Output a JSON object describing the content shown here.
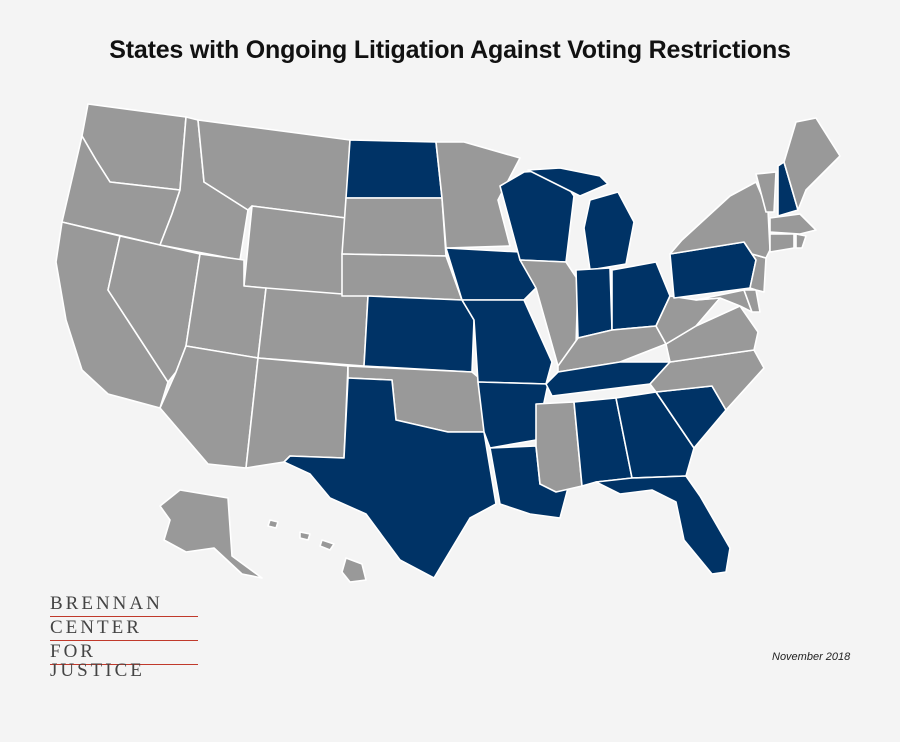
{
  "title": "States with Ongoing Litigation Against Voting Restrictions",
  "date": "November 2018",
  "logo": {
    "line1": "BRENNAN",
    "line2": "CENTER",
    "line3": "FOR JUSTICE"
  },
  "colors": {
    "background": "#f4f4f4",
    "litigation": "#003366",
    "other": "#999999",
    "border": "#ffffff",
    "logo_rule": "#c0392b"
  },
  "states_with_litigation": [
    "ND",
    "KS",
    "TX",
    "IA",
    "MO",
    "AR",
    "LA",
    "WI",
    "MI",
    "IN",
    "OH",
    "PA",
    "NH",
    "TN",
    "AL",
    "GA",
    "SC",
    "FL"
  ]
}
